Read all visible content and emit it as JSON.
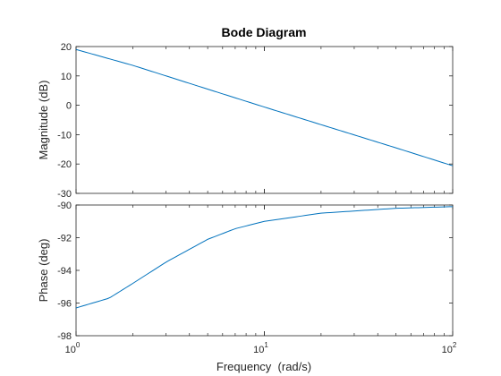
{
  "chart_data": [
    {
      "type": "line",
      "title": "Bode Diagram",
      "ylabel": "Magnitude (dB)",
      "xlabel": "",
      "xscale": "log",
      "xlim": [
        1,
        100
      ],
      "ylim": [
        -30,
        20
      ],
      "yticks": [
        "20",
        "10",
        "0",
        "-10",
        "-20",
        "-30"
      ],
      "grid": false,
      "series": [
        {
          "color": "#0072bd",
          "x": [
            1,
            2,
            5,
            10,
            20,
            50,
            100
          ],
          "y": [
            19,
            13.6,
            5.5,
            -0.6,
            -6.6,
            -14.5,
            -20.6
          ]
        }
      ]
    },
    {
      "type": "line",
      "title": "",
      "ylabel": "Phase (deg)",
      "xlabel": "Frequency  (rad/s)",
      "xscale": "log",
      "xlim": [
        1,
        100
      ],
      "ylim": [
        -98,
        -90
      ],
      "yticks": [
        "-90",
        "-92",
        "-94",
        "-96",
        "-98"
      ],
      "xticks": [
        {
          "base": "10",
          "exp": "0"
        },
        {
          "base": "10",
          "exp": "1"
        },
        {
          "base": "10",
          "exp": "2"
        }
      ],
      "grid": false,
      "series": [
        {
          "color": "#0072bd",
          "x": [
            1,
            1.5,
            2,
            3,
            5,
            7,
            10,
            20,
            50,
            100
          ],
          "y": [
            -96.3,
            -95.7,
            -94.8,
            -93.5,
            -92.1,
            -91.45,
            -91.0,
            -90.5,
            -90.2,
            -90.1
          ]
        }
      ]
    }
  ]
}
